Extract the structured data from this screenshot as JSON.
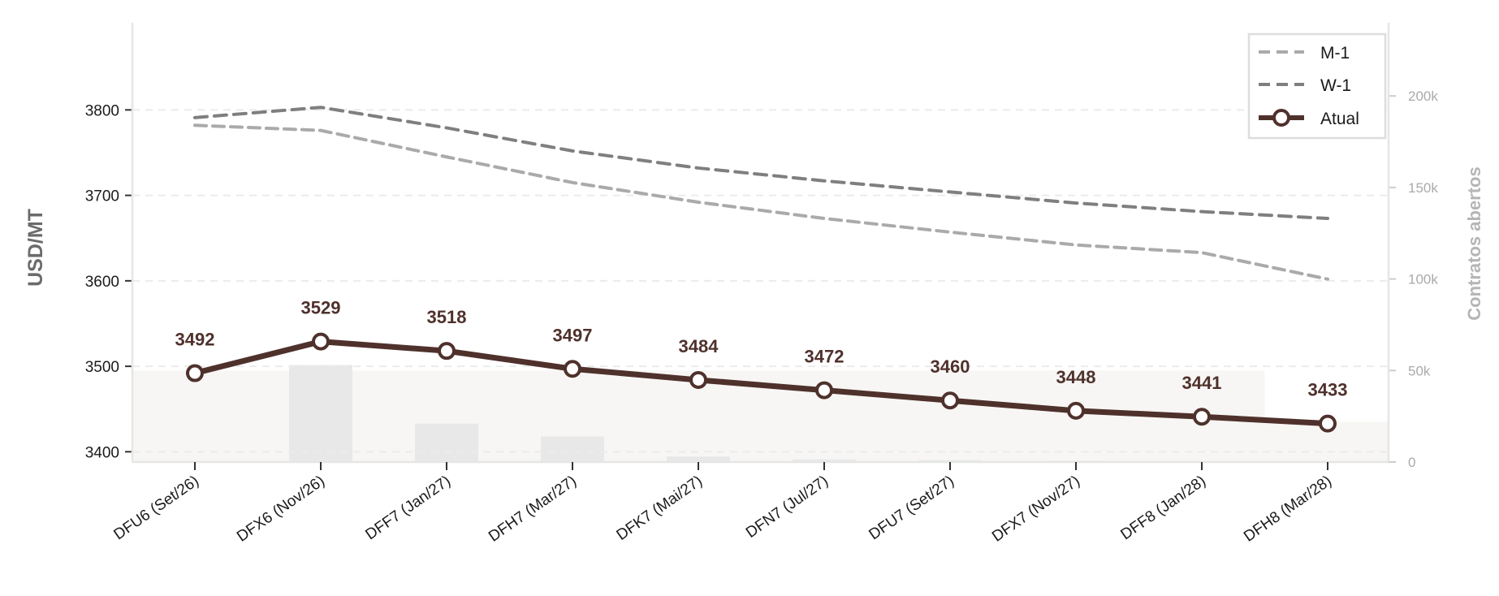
{
  "chart_data": {
    "type": "line",
    "categories": [
      "DFU6 (Set/26)",
      "DFX6 (Nov/26)",
      "DFF7 (Jan/27)",
      "DFH7 (Mar/27)",
      "DFK7 (Mai/27)",
      "DFN7 (Jul/27)",
      "DFU7 (Set/27)",
      "DFX7 (Nov/27)",
      "DFF8 (Jan/28)",
      "DFH8 (Mar/28)"
    ],
    "series": [
      {
        "name": "M-1",
        "style": "dashed",
        "color": "#aaaaaa",
        "values": [
          3782,
          3776,
          3745,
          3715,
          3692,
          3673,
          3657,
          3642,
          3633,
          3602
        ]
      },
      {
        "name": "W-1",
        "style": "dashed",
        "color": "#7f7f7f",
        "values": [
          3791,
          3803,
          3779,
          3752,
          3732,
          3717,
          3704,
          3691,
          3681,
          3673
        ]
      },
      {
        "name": "Atual",
        "style": "solid-markers",
        "color": "#4f312c",
        "values": [
          3492,
          3529,
          3518,
          3497,
          3484,
          3472,
          3460,
          3448,
          3441,
          3433
        ]
      }
    ],
    "data_labels": [
      "3492",
      "3529",
      "3518",
      "3497",
      "3484",
      "3472",
      "3460",
      "3448",
      "3441",
      "3433"
    ],
    "open_interest": {
      "name": "Contratos abertos",
      "color": "#e8e8e8",
      "values": [
        0,
        53000,
        21000,
        14000,
        3000,
        1500,
        1000,
        700,
        0,
        0
      ]
    },
    "open_interest_area": {
      "color": "#f7f6f4",
      "values": [
        50000,
        50000,
        50000,
        50000,
        50000,
        50000,
        50000,
        50000,
        50000,
        22000
      ]
    },
    "ylabel": "USD/MT",
    "ylabel_right": "Contratos abertos",
    "ylim": [
      3388,
      3902
    ],
    "ylim_right": [
      0,
      240000
    ],
    "yticks": [
      "3400",
      "3500",
      "3600",
      "3700",
      "3800"
    ],
    "yticks_right": [
      "0",
      "50k",
      "100k",
      "150k",
      "200k"
    ],
    "grid": "horizontal dashed",
    "legend_position": "top-right"
  }
}
